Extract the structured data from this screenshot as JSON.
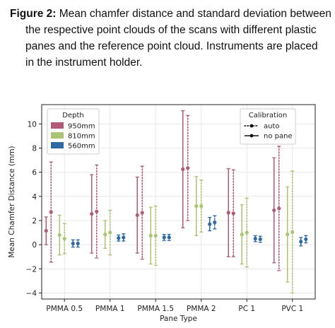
{
  "caption": {
    "label": "Figure 2:",
    "line1": " Mean chamfer distance and standard deviation between",
    "line2": "the respective point clouds of the scans with different plastic",
    "line3": "panes and the reference point cloud. Instruments are placed",
    "line4": "in the instrument holder."
  },
  "colors": {
    "950mm": "#b05a78",
    "810mm": "#a9c472",
    "560mm": "#2f69a3"
  },
  "chart_data": {
    "type": "errorbar",
    "xlabel": "Pane Type",
    "ylabel": "Mean Chamfer Distance (mm)",
    "ylim": [
      -4.5,
      11.6
    ],
    "yticks": [
      -4,
      -2,
      0,
      2,
      4,
      6,
      8,
      10
    ],
    "grid": true,
    "categories": [
      "PMMA 0.5",
      "PMMA 1",
      "PMMA 1.5",
      "PMMA 2",
      "PC 1",
      "PVC 1"
    ],
    "legend_depth": {
      "title": "Depth",
      "placement": "top-left",
      "entries": [
        "950mm",
        "810mm",
        "560mm"
      ]
    },
    "legend_calibration": {
      "title": "Calibration",
      "placement": "top-right",
      "entries": [
        {
          "label": "auto",
          "style": "dotted"
        },
        {
          "label": "no pane",
          "style": "solid"
        }
      ]
    },
    "series": [
      {
        "depth": "950mm",
        "calibration": "no pane",
        "mean": [
          1.15,
          2.55,
          2.45,
          6.25,
          2.65,
          2.85
        ],
        "std": [
          1.15,
          3.25,
          3.15,
          4.85,
          3.65,
          4.35
        ]
      },
      {
        "depth": "950mm",
        "calibration": "auto",
        "mean": [
          2.7,
          2.75,
          2.65,
          6.35,
          2.6,
          3.0
        ],
        "std": [
          4.15,
          3.85,
          3.85,
          4.35,
          3.6,
          5.15
        ]
      },
      {
        "depth": "810mm",
        "calibration": "no pane",
        "mean": [
          0.8,
          0.85,
          0.75,
          3.2,
          0.85,
          0.85
        ],
        "std": [
          1.65,
          1.15,
          2.35,
          2.45,
          2.45,
          3.95
        ]
      },
      {
        "depth": "810mm",
        "calibration": "auto",
        "mean": [
          0.5,
          1.0,
          0.75,
          3.2,
          1.0,
          1.05
        ],
        "std": [
          1.25,
          1.85,
          2.45,
          2.15,
          2.85,
          5.05
        ]
      },
      {
        "depth": "560mm",
        "calibration": "no pane",
        "mean": [
          0.1,
          0.55,
          0.6,
          1.7,
          0.5,
          0.25
        ],
        "std": [
          0.3,
          0.25,
          0.25,
          0.55,
          0.25,
          0.35
        ]
      },
      {
        "depth": "560mm",
        "calibration": "auto",
        "mean": [
          0.1,
          0.6,
          0.6,
          1.85,
          0.45,
          0.45
        ],
        "std": [
          0.3,
          0.3,
          0.25,
          0.55,
          0.25,
          0.3
        ]
      }
    ]
  }
}
